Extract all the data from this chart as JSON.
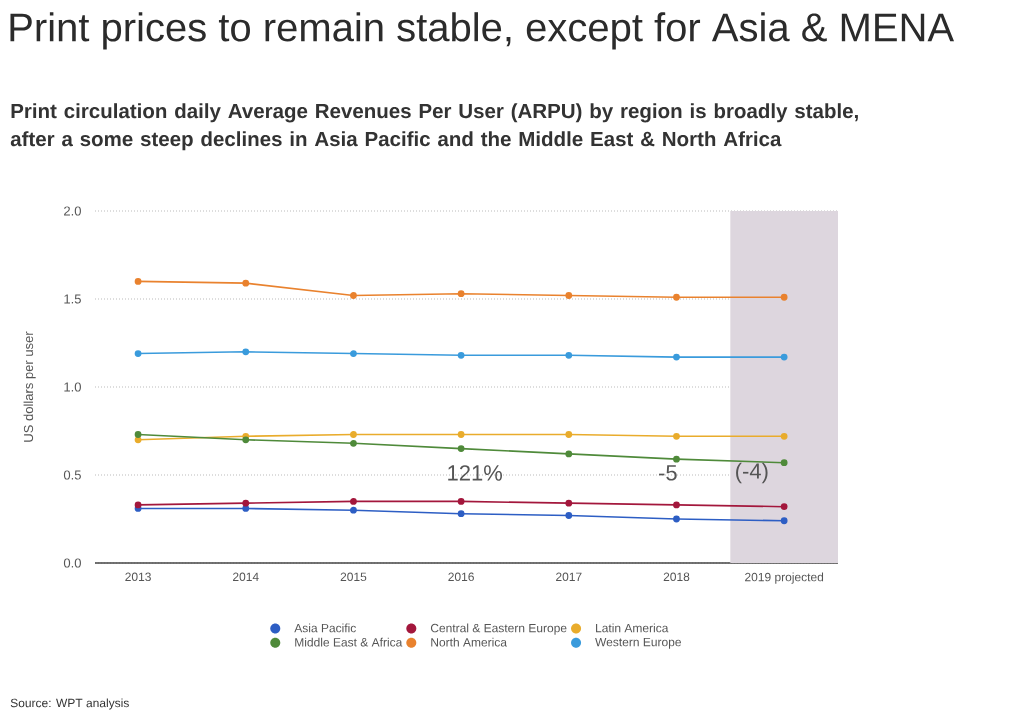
{
  "chart_data": {
    "type": "line",
    "title": "Print prices to remain stable, except for Asia & MENA",
    "subtitle": "Print circulation daily Average Revenues Per User (ARPU) by region is broadly stable, after a some steep declines in Asia Pacific and the Middle East & North Africa",
    "ylabel": "US dollars per user",
    "categories": [
      "2013",
      "2014",
      "2015",
      "2016",
      "2017",
      "2018",
      "2019 projected"
    ],
    "series": [
      {
        "name": "Asia Pacific",
        "color": "#2d5ec4",
        "values": [
          0.31,
          0.31,
          0.3,
          0.28,
          0.27,
          0.25,
          0.24
        ]
      },
      {
        "name": "Central & Eastern Europe",
        "color": "#a3173c",
        "values": [
          0.33,
          0.34,
          0.35,
          0.35,
          0.34,
          0.33,
          0.32
        ]
      },
      {
        "name": "Latin America",
        "color": "#e9ac2c",
        "values": [
          0.7,
          0.72,
          0.73,
          0.73,
          0.73,
          0.72,
          0.72
        ]
      },
      {
        "name": "Middle East & Africa",
        "color": "#4f8a3a",
        "values": [
          0.73,
          0.7,
          0.68,
          0.65,
          0.62,
          0.59,
          0.57
        ]
      },
      {
        "name": "North America",
        "color": "#e9822e",
        "values": [
          1.6,
          1.59,
          1.52,
          1.53,
          1.52,
          1.51,
          1.51
        ]
      },
      {
        "name": "Western Europe",
        "color": "#3a9bdc",
        "values": [
          1.19,
          1.2,
          1.19,
          1.18,
          1.18,
          1.17,
          1.17
        ]
      }
    ],
    "ylim": [
      0,
      2
    ],
    "yticks": [
      {
        "value": 0,
        "label": "0.0"
      },
      0.5,
      {
        "value": 1,
        "label": "1.0"
      },
      1.5,
      {
        "value": 2,
        "label": "2.0"
      }
    ],
    "grid": "y",
    "legend": "bottom",
    "marker": "circle",
    "line_style": "solid",
    "bands": [
      {
        "axis": "x",
        "from": "2019 projected",
        "to": "2019 projected",
        "color": "#ddd6de"
      }
    ],
    "annotations": [
      "121%",
      "-5",
      "(-4)",
      "Source: WPT analysis"
    ]
  }
}
